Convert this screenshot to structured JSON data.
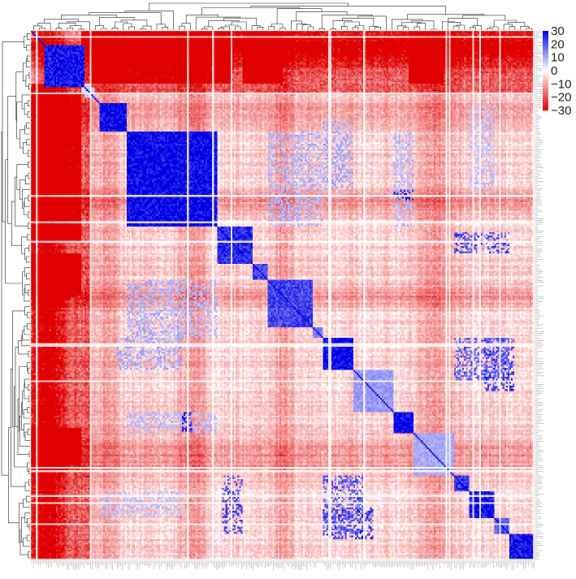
{
  "chart_data": {
    "type": "heatmap",
    "title": "",
    "xlabel": "",
    "ylabel": "",
    "row_dendrogram": true,
    "column_dendrogram": true,
    "symmetric": true,
    "n_features": 300,
    "color_scale": {
      "min": -30,
      "max": 30,
      "ticks": [
        30,
        20,
        10,
        0,
        -10,
        -20,
        -30
      ],
      "tick_labels": [
        "30",
        "20",
        "10",
        "0",
        "−10",
        "−20",
        "−30"
      ],
      "colors": {
        "low": "#e00000",
        "mid": "#ffffff",
        "high": "#0000e6"
      }
    },
    "diagonal_blocks": [
      {
        "start": 0.025,
        "end": 0.105,
        "value": 28
      },
      {
        "start": 0.105,
        "end": 0.125,
        "value": 6
      },
      {
        "start": 0.135,
        "end": 0.19,
        "value": 30
      },
      {
        "start": 0.19,
        "end": 0.37,
        "value": 30
      },
      {
        "start": 0.37,
        "end": 0.44,
        "value": 25
      },
      {
        "start": 0.44,
        "end": 0.47,
        "value": 22
      },
      {
        "start": 0.47,
        "end": 0.56,
        "value": 22
      },
      {
        "start": 0.56,
        "end": 0.58,
        "value": 15
      },
      {
        "start": 0.58,
        "end": 0.64,
        "value": 30
      },
      {
        "start": 0.64,
        "end": 0.72,
        "value": 12
      },
      {
        "start": 0.72,
        "end": 0.76,
        "value": 30
      },
      {
        "start": 0.76,
        "end": 0.84,
        "value": 10
      },
      {
        "start": 0.84,
        "end": 0.87,
        "value": 24
      },
      {
        "start": 0.87,
        "end": 0.92,
        "value": 28
      },
      {
        "start": 0.92,
        "end": 0.95,
        "value": 20
      },
      {
        "start": 0.95,
        "end": 1.0,
        "value": 28
      }
    ],
    "negative_bands": [
      {
        "center": 0.03,
        "width": 0.05,
        "value": -22
      },
      {
        "center": 0.15,
        "width": 0.04,
        "value": -8
      },
      {
        "center": 0.32,
        "width": 0.04,
        "value": -10
      },
      {
        "center": 0.5,
        "width": 0.03,
        "value": -9
      },
      {
        "center": 0.8,
        "width": 0.06,
        "value": -10
      }
    ],
    "off_diagonal_blocks": [
      {
        "rows": [
          0.0,
          0.12
        ],
        "cols": [
          0.12,
          1.0
        ],
        "value": -16
      },
      {
        "rows": [
          0.1,
          0.4
        ],
        "cols": [
          0.0,
          0.1
        ],
        "value": -20
      },
      {
        "rows": [
          0.42,
          0.5
        ],
        "cols": [
          0.0,
          0.1
        ],
        "value": -26
      },
      {
        "rows": [
          0.75,
          0.82
        ],
        "cols": [
          0.0,
          0.1
        ],
        "value": -24
      },
      {
        "rows": [
          0.19,
          0.37
        ],
        "cols": [
          0.47,
          0.58
        ],
        "value": 10
      },
      {
        "rows": [
          0.19,
          0.37
        ],
        "cols": [
          0.72,
          0.76
        ],
        "value": 9
      },
      {
        "rows": [
          0.58,
          0.64
        ],
        "cols": [
          0.17,
          0.3
        ],
        "value": 11
      },
      {
        "rows": [
          0.58,
          0.64
        ],
        "cols": [
          0.9,
          0.96
        ],
        "value": 24
      },
      {
        "rows": [
          0.64,
          0.68
        ],
        "cols": [
          0.9,
          0.96
        ],
        "value": 26
      },
      {
        "rows": [
          0.72,
          0.76
        ],
        "cols": [
          0.3,
          0.32
        ],
        "value": 28
      },
      {
        "rows": [
          0.84,
          0.95
        ],
        "cols": [
          0.38,
          0.42
        ],
        "value": 22
      },
      {
        "rows": [
          0.84,
          0.95
        ],
        "cols": [
          0.58,
          0.66
        ],
        "value": 20
      },
      {
        "rows": [
          0.87,
          0.92
        ],
        "cols": [
          0.14,
          0.3
        ],
        "value": 8
      }
    ]
  }
}
